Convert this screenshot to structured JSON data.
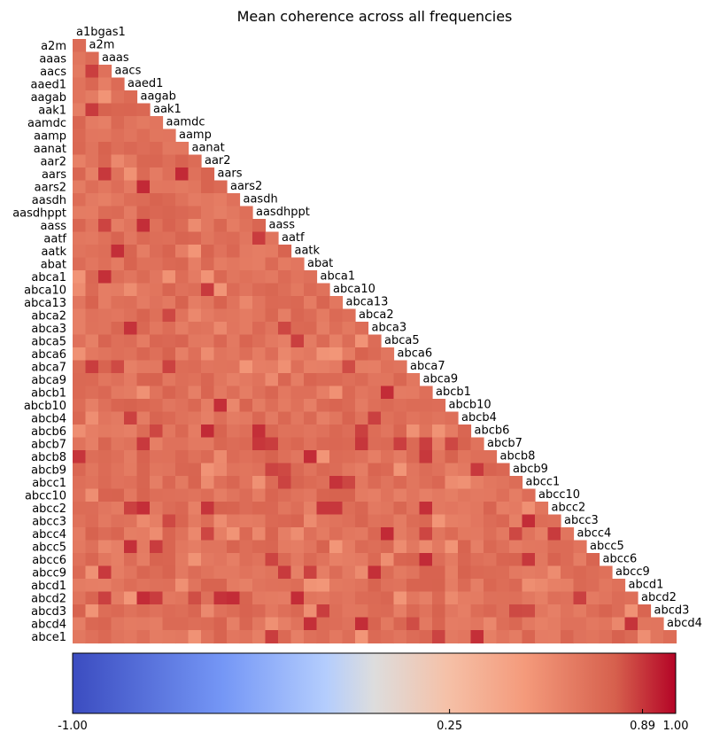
{
  "chart_data": {
    "type": "heatmap",
    "title": "Mean coherence across all frequencies",
    "variables": [
      "a1bgas1",
      "a2m",
      "aaas",
      "aacs",
      "aaed1",
      "aagab",
      "aak1",
      "aamdc",
      "aamp",
      "aanat",
      "aar2",
      "aars",
      "aars2",
      "aasdh",
      "aasdhppt",
      "aass",
      "aatf",
      "aatk",
      "abat",
      "abca1",
      "abca10",
      "abca13",
      "abca2",
      "abca3",
      "abca5",
      "abca6",
      "abca7",
      "abca9",
      "abcb1",
      "abcb10",
      "abcb4",
      "abcb6",
      "abcb7",
      "abcb8",
      "abcb9",
      "abcc1",
      "abcc10",
      "abcc2",
      "abcc3",
      "abcc4",
      "abcc5",
      "abcc6",
      "abcc9",
      "abcd1",
      "abcd2",
      "abcd3",
      "abcd4",
      "abce1"
    ],
    "y_labels": [
      "a2m",
      "aaas",
      "aacs",
      "aaed1",
      "aagab",
      "aak1",
      "aamdc",
      "aamp",
      "aanat",
      "aar2",
      "aars",
      "aars2",
      "aasdh",
      "aasdhppt",
      "aass",
      "aatf",
      "aatk",
      "abat",
      "abca1",
      "abca10",
      "abca13",
      "abca2",
      "abca3",
      "abca5",
      "abca6",
      "abca7",
      "abca9",
      "abcb1",
      "abcb10",
      "abcb4",
      "abcb6",
      "abcb7",
      "abcb8",
      "abcb9",
      "abcc1",
      "abcc10",
      "abcc2",
      "abcc3",
      "abcc4",
      "abcc5",
      "abcc6",
      "abcc9",
      "abcd1",
      "abcd2",
      "abcd3",
      "abcd4",
      "abce1"
    ],
    "diagonal_labels": [
      "a1bgas1",
      "a2m",
      "aaas",
      "aacs",
      "aaed1",
      "aagab",
      "aak1",
      "aamdc",
      "aamp",
      "aanat",
      "aar2",
      "aars",
      "aars2",
      "aasdh",
      "aasdhppt",
      "aass",
      "aatf",
      "aatk",
      "abat",
      "abca1",
      "abca10",
      "abca13",
      "abca2",
      "abca3",
      "abca5",
      "abca6",
      "abca7",
      "abca9",
      "abcb1",
      "abcb10",
      "abcb4",
      "abcb6",
      "abcb7",
      "abcb8",
      "abcb9",
      "abcc1",
      "abcc10",
      "abcc2",
      "abcc3",
      "abcc4",
      "abcc5",
      "abcc6",
      "abcc9",
      "abcd1",
      "abcd2",
      "abcd3",
      "abcd4"
    ],
    "matrix": "lower-triangle",
    "value_range_estimate": [
      0.55,
      0.95
    ],
    "colorbar": {
      "colormap": "coolwarm",
      "vmin": -1.0,
      "vmax": 1.0,
      "ticks": [
        {
          "value": -1.0,
          "label": "-1.00"
        },
        {
          "value": 0.25,
          "label": "0.25"
        },
        {
          "value": 0.89,
          "label": "0.89"
        },
        {
          "value": 1.0,
          "label": "1.00"
        }
      ],
      "orientation": "horizontal",
      "placement": "bottom"
    }
  }
}
